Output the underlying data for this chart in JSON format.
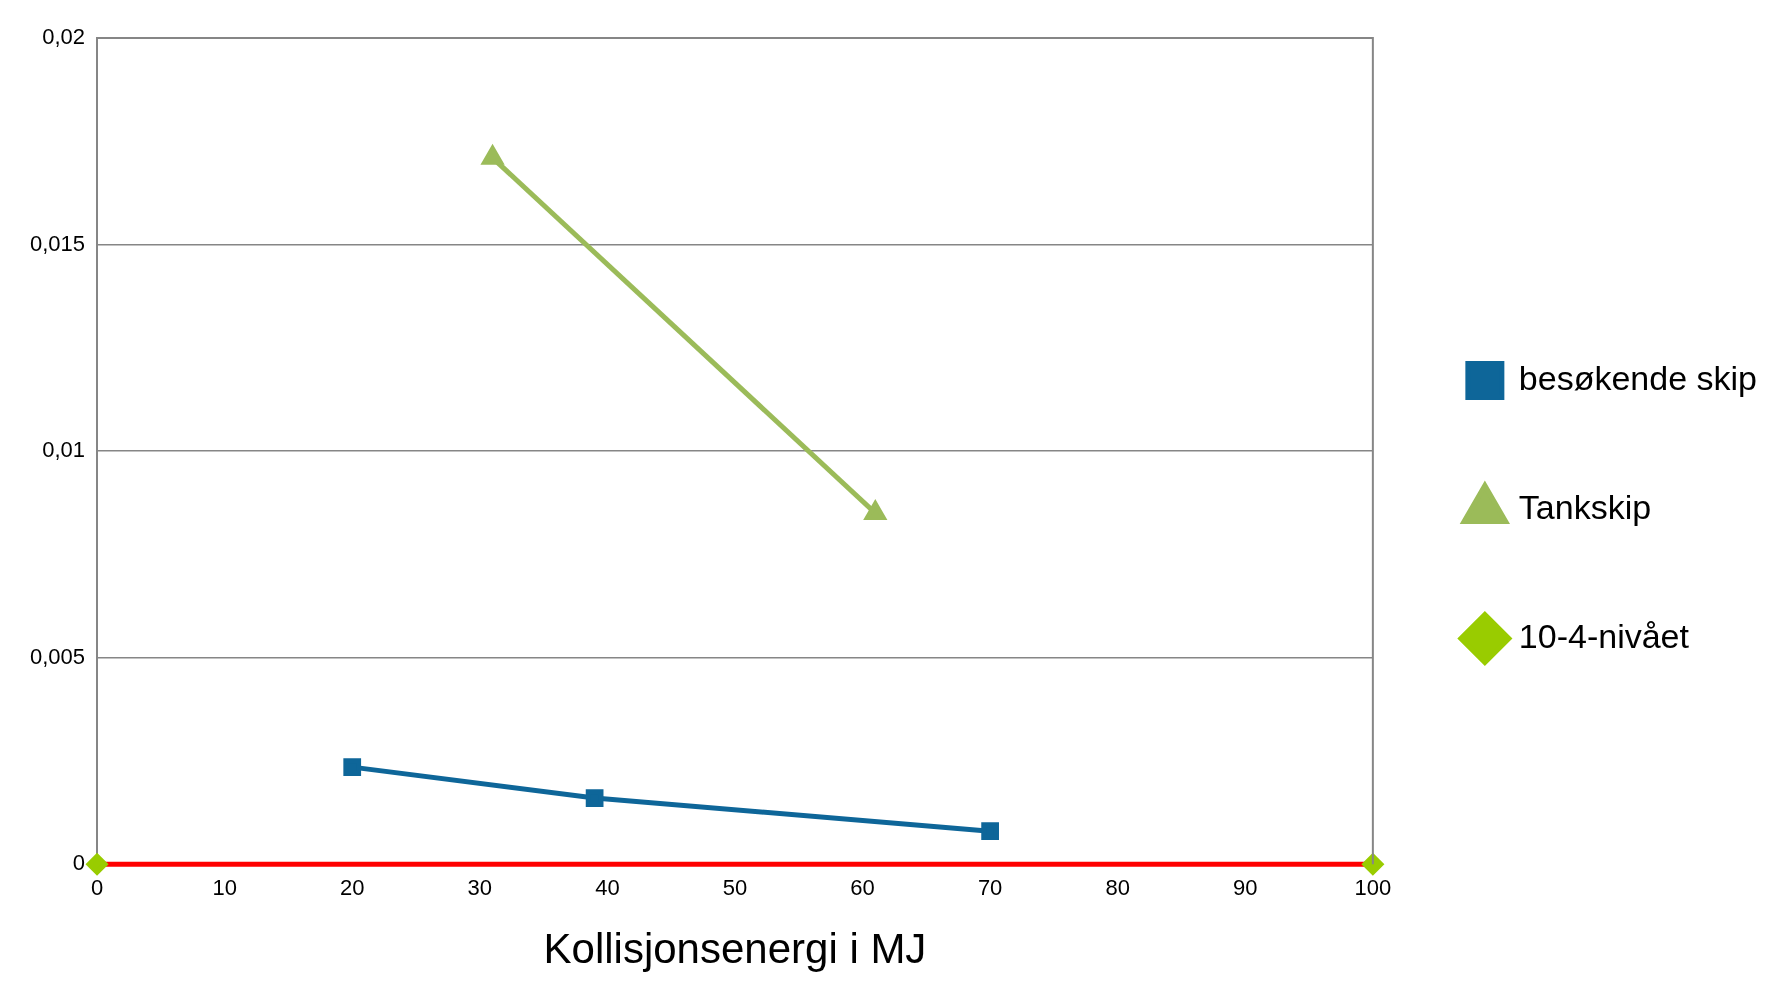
{
  "chart_data": {
    "type": "line",
    "xlabel": "Kollisjonsenergi i MJ",
    "xlim": [
      0,
      100
    ],
    "xticks": [
      0,
      10,
      20,
      30,
      40,
      50,
      60,
      70,
      80,
      90,
      100
    ],
    "ylim": [
      0,
      0.02
    ],
    "yticks": [
      {
        "value": 0,
        "label": "0"
      },
      {
        "value": 0.005,
        "label": "0,005"
      },
      {
        "value": 0.01,
        "label": "0,01"
      },
      {
        "value": 0.015,
        "label": "0,015"
      },
      {
        "value": 0.02,
        "label": "0,02"
      }
    ],
    "grid": "y",
    "legend": "right",
    "series": [
      {
        "name": "besøkende skip",
        "color": "#0e6699",
        "marker": "square",
        "x": [
          20,
          39,
          70
        ],
        "values": [
          0.00235,
          0.0016,
          0.0008
        ]
      },
      {
        "name": "Tankskip",
        "color": "#9bbb59",
        "marker": "triangle",
        "x": [
          31,
          61
        ],
        "values": [
          0.0171,
          0.0085
        ]
      },
      {
        "name": "10-4-nivået",
        "color": "#ff0000",
        "marker": "diamond",
        "colors": [
          "#99cc00",
          "#99cc00"
        ],
        "x": [
          0,
          100
        ],
        "values": [
          0,
          0
        ]
      }
    ]
  }
}
